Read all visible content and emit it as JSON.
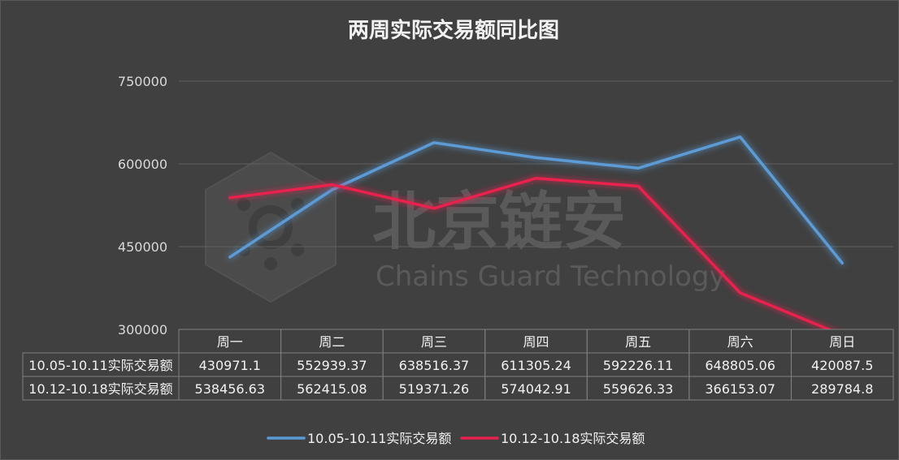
{
  "chart_data": {
    "type": "line",
    "title": "两周实际交易额同比图",
    "categories": [
      "周一",
      "周二",
      "周三",
      "周四",
      "周五",
      "周六",
      "周日"
    ],
    "series": [
      {
        "name": "10.05-10.11实际交易额",
        "color": "#5b9bd5",
        "values": [
          430971.1,
          552939.37,
          638516.37,
          611305.24,
          592226.11,
          648805.06,
          420087.5
        ],
        "labels": [
          "430971.1",
          "552939.37",
          "638516.37",
          "611305.24",
          "592226.11",
          "648805.06",
          "420087.5"
        ]
      },
      {
        "name": "10.12-10.18实际交易额",
        "color": "#e8204e",
        "values": [
          538456.63,
          562415.08,
          519371.26,
          574042.91,
          559626.33,
          366153.07,
          289784.8
        ],
        "labels": [
          "538456.63",
          "562415.08",
          "519371.26",
          "574042.91",
          "559626.33",
          "366153.07",
          "289784.8"
        ]
      }
    ],
    "yticks": [
      "300000",
      "450000",
      "600000",
      "750000"
    ],
    "ytick_values": [
      300000,
      450000,
      600000,
      750000
    ],
    "ylim": [
      300000,
      750000
    ],
    "grid": true,
    "legend_position": "bottom",
    "data_table": true
  },
  "watermark": {
    "cn": "北京链安",
    "en": "Chains Guard Technology"
  }
}
